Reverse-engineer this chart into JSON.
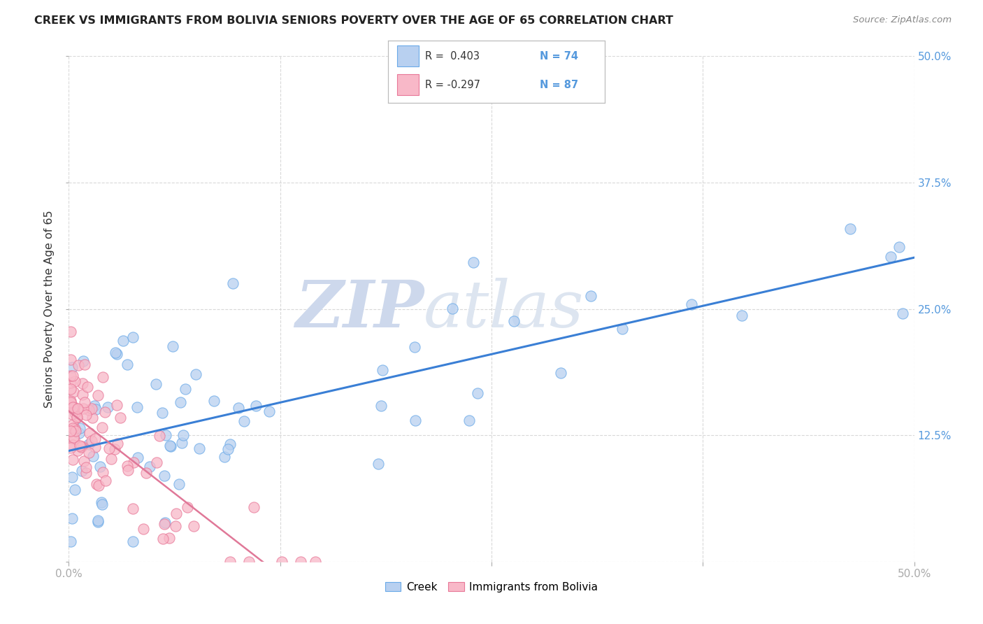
{
  "title": "CREEK VS IMMIGRANTS FROM BOLIVIA SENIORS POVERTY OVER THE AGE OF 65 CORRELATION CHART",
  "source": "Source: ZipAtlas.com",
  "ylabel": "Seniors Poverty Over the Age of 65",
  "xlim": [
    0,
    0.5
  ],
  "ylim": [
    0,
    0.5
  ],
  "background_color": "#ffffff",
  "grid_color": "#cccccc",
  "creek_fill_color": "#b8d0f0",
  "creek_edge_color": "#6aaae8",
  "bolivia_fill_color": "#f8b8c8",
  "bolivia_edge_color": "#e87898",
  "creek_line_color": "#3a7fd5",
  "bolivia_line_color": "#e07898",
  "watermark_text": "ZIPatlas",
  "watermark_color": "#cdd8ec",
  "right_tick_color": "#5599dd",
  "creek_label": "Creek",
  "bolivia_label": "Immigrants from Bolivia",
  "creek_R": 0.403,
  "creek_N": 74,
  "bolivia_R": -0.297,
  "bolivia_N": 87,
  "legend_creek_r": "R =  0.403",
  "legend_creek_n": "N = 74",
  "legend_bolivia_r": "R = -0.297",
  "legend_bolivia_n": "N = 87"
}
